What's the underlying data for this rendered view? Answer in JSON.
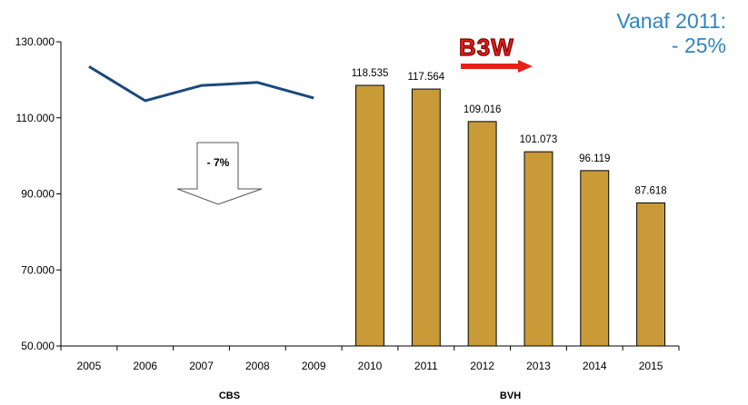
{
  "chart_data": {
    "type": "bar+line",
    "x": [
      "2005",
      "2006",
      "2007",
      "2008",
      "2009",
      "2010",
      "2011",
      "2012",
      "2013",
      "2014",
      "2015"
    ],
    "yticks": [
      "50.000",
      "70.000",
      "90.000",
      "110.000",
      "130.000"
    ],
    "ylim": [
      50000,
      130000
    ],
    "line_series": {
      "source": "CBS",
      "color": "#1a4a7c",
      "points": [
        {
          "x": "2005",
          "y": 123500
        },
        {
          "x": "2006",
          "y": 114500
        },
        {
          "x": "2007",
          "y": 118500
        },
        {
          "x": "2008",
          "y": 119300
        },
        {
          "x": "2009",
          "y": 115200
        }
      ]
    },
    "bar_series": {
      "source": "BVH",
      "color": "#c89a38",
      "points": [
        {
          "x": "2010",
          "y": 118535,
          "label": "118.535"
        },
        {
          "x": "2011",
          "y": 117564,
          "label": "117.564"
        },
        {
          "x": "2012",
          "y": 109016,
          "label": "109.016"
        },
        {
          "x": "2013",
          "y": 101073,
          "label": "101.073"
        },
        {
          "x": "2014",
          "y": 96119,
          "label": "96.119"
        },
        {
          "x": "2015",
          "y": 87618,
          "label": "87.618"
        }
      ]
    },
    "source_labels": [
      {
        "text": "CBS",
        "under": [
          "2007",
          "2008"
        ]
      },
      {
        "text": "BVH",
        "under": [
          "2012",
          "2013"
        ]
      }
    ],
    "annotations": {
      "down_arrow_text": "- 7%",
      "logo_text": "B3W",
      "headline_line1": "Vanaf 2011:",
      "headline_line2": "- 25%"
    },
    "grid": false,
    "legend": "none"
  }
}
